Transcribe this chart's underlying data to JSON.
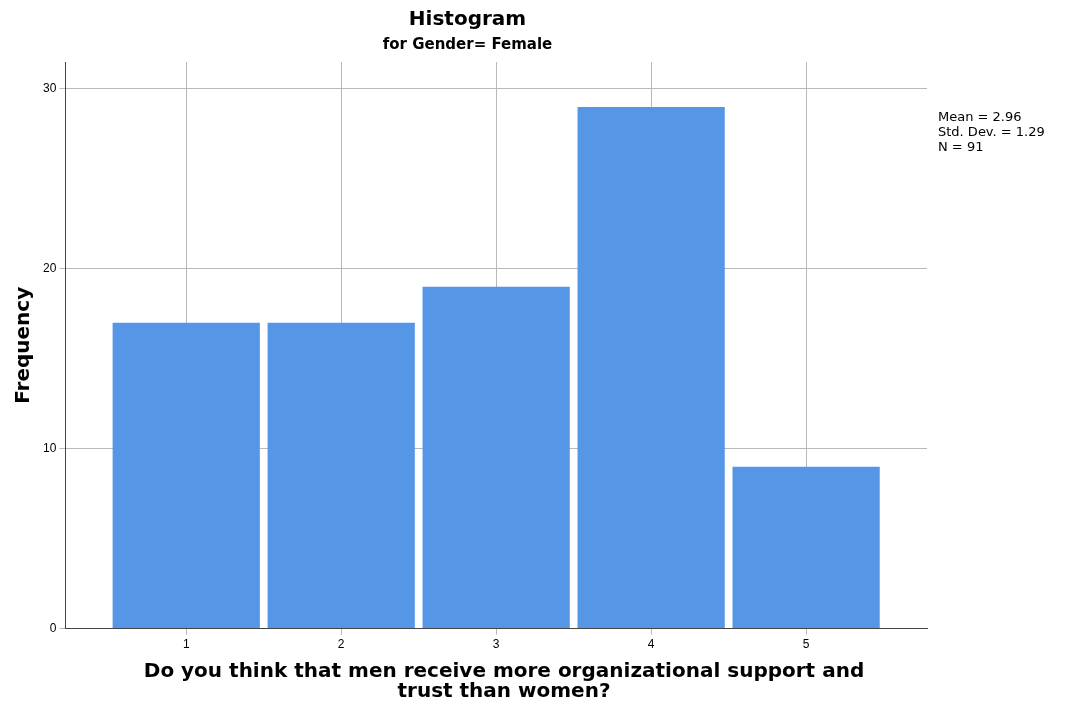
{
  "chart_data": {
    "type": "histogram",
    "title": "Histogram",
    "subtitle": "for Gender= Female",
    "xlabel": "Do you think that men receive more organizational support and trust than women?",
    "ylabel": "Frequency",
    "bins": [
      0.5,
      1.5,
      2.5,
      3.5,
      4.5,
      5.5
    ],
    "values": [
      17,
      17,
      19,
      29,
      9
    ],
    "color": "#5596e6",
    "xlim": [
      0.22,
      5.78
    ],
    "xticks": [
      1,
      2,
      3,
      4,
      5
    ],
    "ylim": [
      0,
      31.5
    ],
    "yticks": [
      0,
      10,
      20,
      30
    ],
    "grid": true,
    "legend": false,
    "annotations": [
      "Mean = 2.96",
      "Std. Dev. = 1.29",
      "N = 91"
    ]
  }
}
